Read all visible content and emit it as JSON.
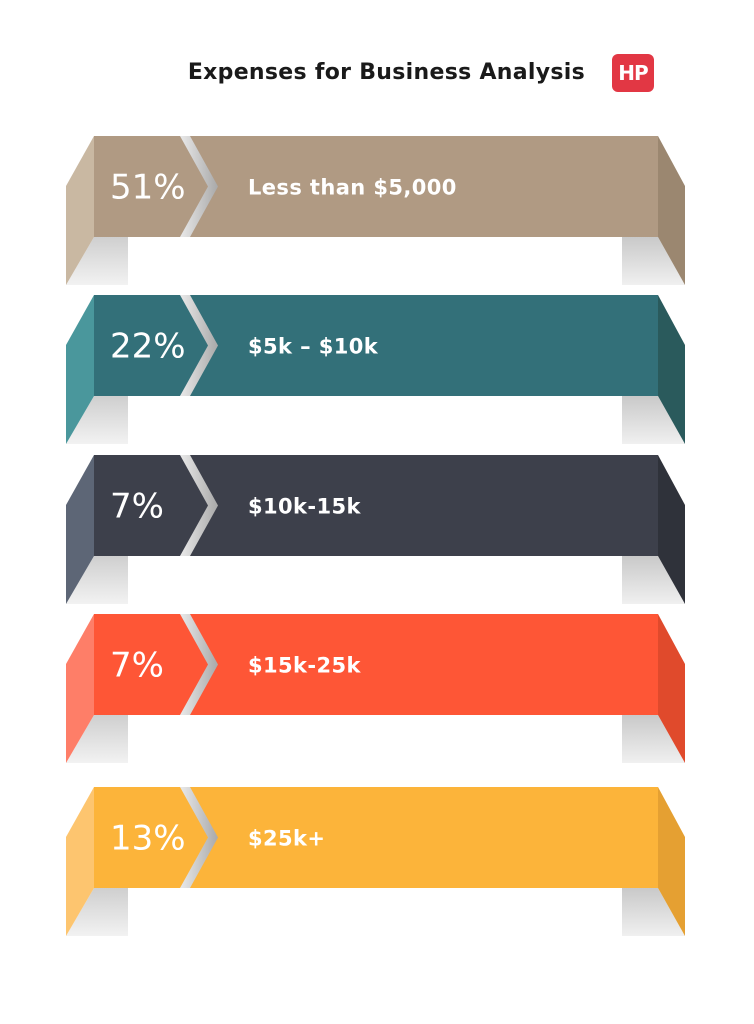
{
  "header": {
    "title": "Expenses for Business Analysis",
    "logo_text": "HP"
  },
  "colors": {
    "logo": "#e23744"
  },
  "chart_data": {
    "type": "bar",
    "title": "Expenses for Business Analysis",
    "categories": [
      "Less than $5,000",
      "$5k – $10k",
      "$10k-15k",
      "$15k-25k",
      "$25k+"
    ],
    "values": [
      51,
      22,
      7,
      7,
      13
    ],
    "value_labels": [
      "51%",
      "22%",
      "7%",
      "7%",
      "13%"
    ],
    "unit": "%",
    "colors": [
      "#b09a83",
      "#337079",
      "#3d404b",
      "#fe5636",
      "#fcb43a"
    ],
    "side_colors": [
      "#c9b8a2",
      "#4a979c",
      "#5d6676",
      "#fe7e68",
      "#fdc56f"
    ],
    "end_colors": [
      "#9b8770",
      "#2a5a5c",
      "#2f323a",
      "#e04a2c",
      "#e5a032"
    ]
  }
}
